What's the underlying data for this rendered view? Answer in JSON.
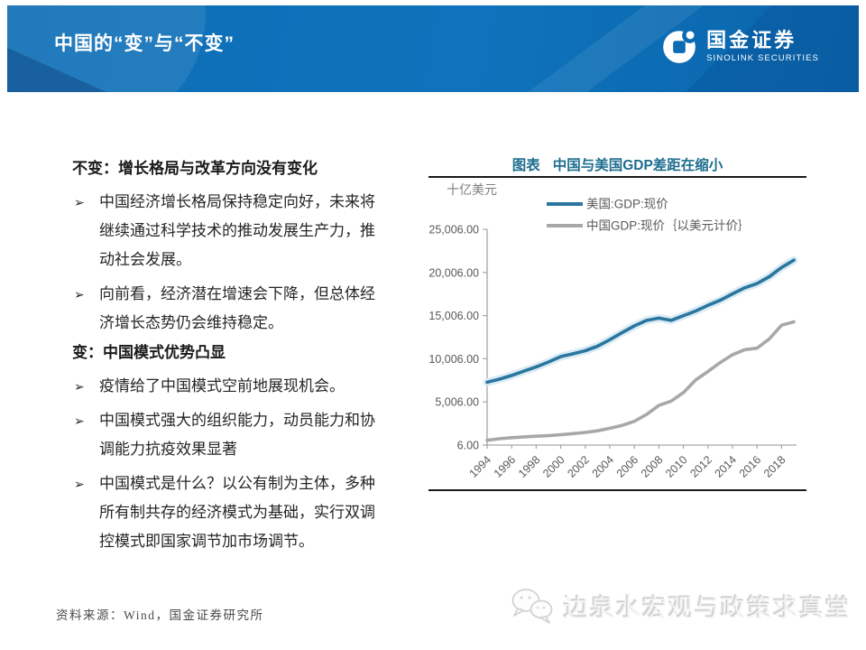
{
  "header": {
    "title": "中国的“变”与“不变”",
    "logo_cn": "国金证券",
    "logo_en": "SINOLINK SECURITIES"
  },
  "content": {
    "bullet_glyph": "➢",
    "sections": [
      {
        "heading": "不变：增长格局与改革方向没有变化",
        "bullets": [
          "中国经济增长格局保持稳定向好，未来将继续通过科学技术的推动发展生产力，推动社会发展。",
          "向前看，经济潜在增速会下降，但总体经济增长态势仍会维持稳定。"
        ]
      },
      {
        "heading": "变：中国模式优势凸显",
        "bullets": [
          "疫情给了中国模式空前地展现机会。",
          "中国模式强大的组织能力，动员能力和协调能力抗疫效果显著",
          "中国模式是什么？以公有制为主体，多种所有制共存的经济模式为基础，实行双调控模式即国家调节加市场调节。"
        ]
      }
    ]
  },
  "chart_data": {
    "type": "line",
    "title_prefix": "图表",
    "title": "中国与美国GDP差距在缩小",
    "unit_label": "十亿美元",
    "x": [
      1994,
      1995,
      1996,
      1997,
      1998,
      1999,
      2000,
      2001,
      2002,
      2003,
      2004,
      2005,
      2006,
      2007,
      2008,
      2009,
      2010,
      2011,
      2012,
      2013,
      2014,
      2015,
      2016,
      2017,
      2018,
      2019
    ],
    "x_tick_labels": [
      "1994",
      "1996",
      "1998",
      "2000",
      "2002",
      "2004",
      "2006",
      "2008",
      "2010",
      "2012",
      "2014",
      "2016",
      "2018"
    ],
    "y_ticks": [
      6,
      5006,
      10006,
      15006,
      20006,
      25006
    ],
    "y_tick_labels": [
      "6.00",
      "5,006.00",
      "10,006.00",
      "15,006.00",
      "20,006.00",
      "25,006.00"
    ],
    "ylim": [
      6,
      25006
    ],
    "grid": false,
    "legend_position": "top-right",
    "series": [
      {
        "name": "美国:GDP:现价",
        "color": "#2B769E",
        "halo_color": "#D7EAF4",
        "values": [
          7287,
          7640,
          8073,
          8578,
          9063,
          9631,
          10252,
          10582,
          10936,
          11458,
          12214,
          13037,
          13815,
          14452,
          14713,
          14449,
          14992,
          15543,
          16197,
          16785,
          17527,
          18225,
          18715,
          19519,
          20580,
          21430
        ]
      },
      {
        "name": "中国GDP:现价｛以美元计价｝",
        "color": "#A8A8A8",
        "halo_color": "",
        "values": [
          564,
          734,
          864,
          962,
          1029,
          1094,
          1211,
          1339,
          1471,
          1660,
          1955,
          2286,
          2752,
          3550,
          4594,
          5102,
          6087,
          7552,
          8532,
          9570,
          10476,
          11062,
          11233,
          12310,
          13895,
          14280
        ]
      }
    ]
  },
  "footer": {
    "source": "资料来源：Wind，国金证券研究所",
    "watermark": "边泉水宏观与政策求真堂"
  }
}
